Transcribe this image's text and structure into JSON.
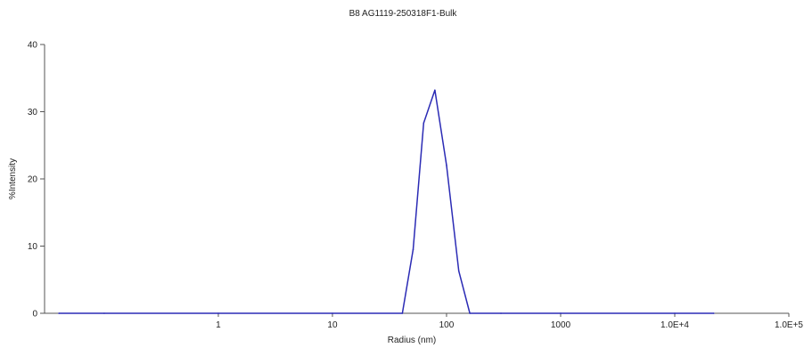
{
  "chart_data": {
    "type": "line",
    "title": "B8 AG1119-250318F1-Bulk",
    "xlabel": "Radius (nm)",
    "ylabel": "%Intensity",
    "x_scale": "log",
    "xlim": [
      0.03,
      100000
    ],
    "ylim": [
      0,
      40
    ],
    "x_ticks": [
      {
        "value": 1,
        "label": "1"
      },
      {
        "value": 10,
        "label": "10"
      },
      {
        "value": 100,
        "label": "100"
      },
      {
        "value": 1000,
        "label": "1000"
      },
      {
        "value": 10000,
        "label": "1.0E+4"
      },
      {
        "value": 100000,
        "label": "1.0E+5"
      }
    ],
    "y_ticks": [
      {
        "value": 0,
        "label": "0"
      },
      {
        "value": 10,
        "label": "10"
      },
      {
        "value": 20,
        "label": "20"
      },
      {
        "value": 30,
        "label": "30"
      },
      {
        "value": 40,
        "label": "40"
      }
    ],
    "grid": false,
    "legend": "none",
    "line_color": "#2b2bb5",
    "series": [
      {
        "x": [
          0.04,
          0.1,
          1,
          10,
          41,
          51,
          63,
          79,
          100,
          128,
          160,
          300,
          1000,
          10000,
          22000
        ],
        "y": [
          0,
          0,
          0,
          0,
          0,
          9.5,
          28.3,
          33.2,
          22.0,
          6.3,
          0,
          0,
          0,
          0,
          0
        ]
      }
    ]
  }
}
